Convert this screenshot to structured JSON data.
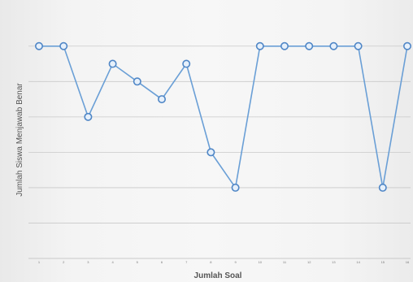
{
  "chart_data": {
    "type": "line",
    "title": "",
    "xlabel": "Jumlah Soal",
    "ylabel": "Jumlah Siswa Menjawab Benar",
    "x": [
      1,
      2,
      3,
      4,
      5,
      6,
      7,
      8,
      9,
      10,
      11,
      12,
      13,
      14,
      15,
      16
    ],
    "series": [
      {
        "values": [
          30,
          30,
          26,
          29,
          28,
          27,
          29,
          24,
          22,
          30,
          30,
          30,
          30,
          30,
          22,
          30
        ]
      }
    ],
    "ylim": [
      18,
      31
    ],
    "grid": true,
    "legend": "none",
    "colors": {
      "line": "#6a9fd6",
      "marker_fill": "#e6f0fb",
      "marker_edge": "#4f86c6",
      "grid": "#c9c9c9"
    }
  }
}
